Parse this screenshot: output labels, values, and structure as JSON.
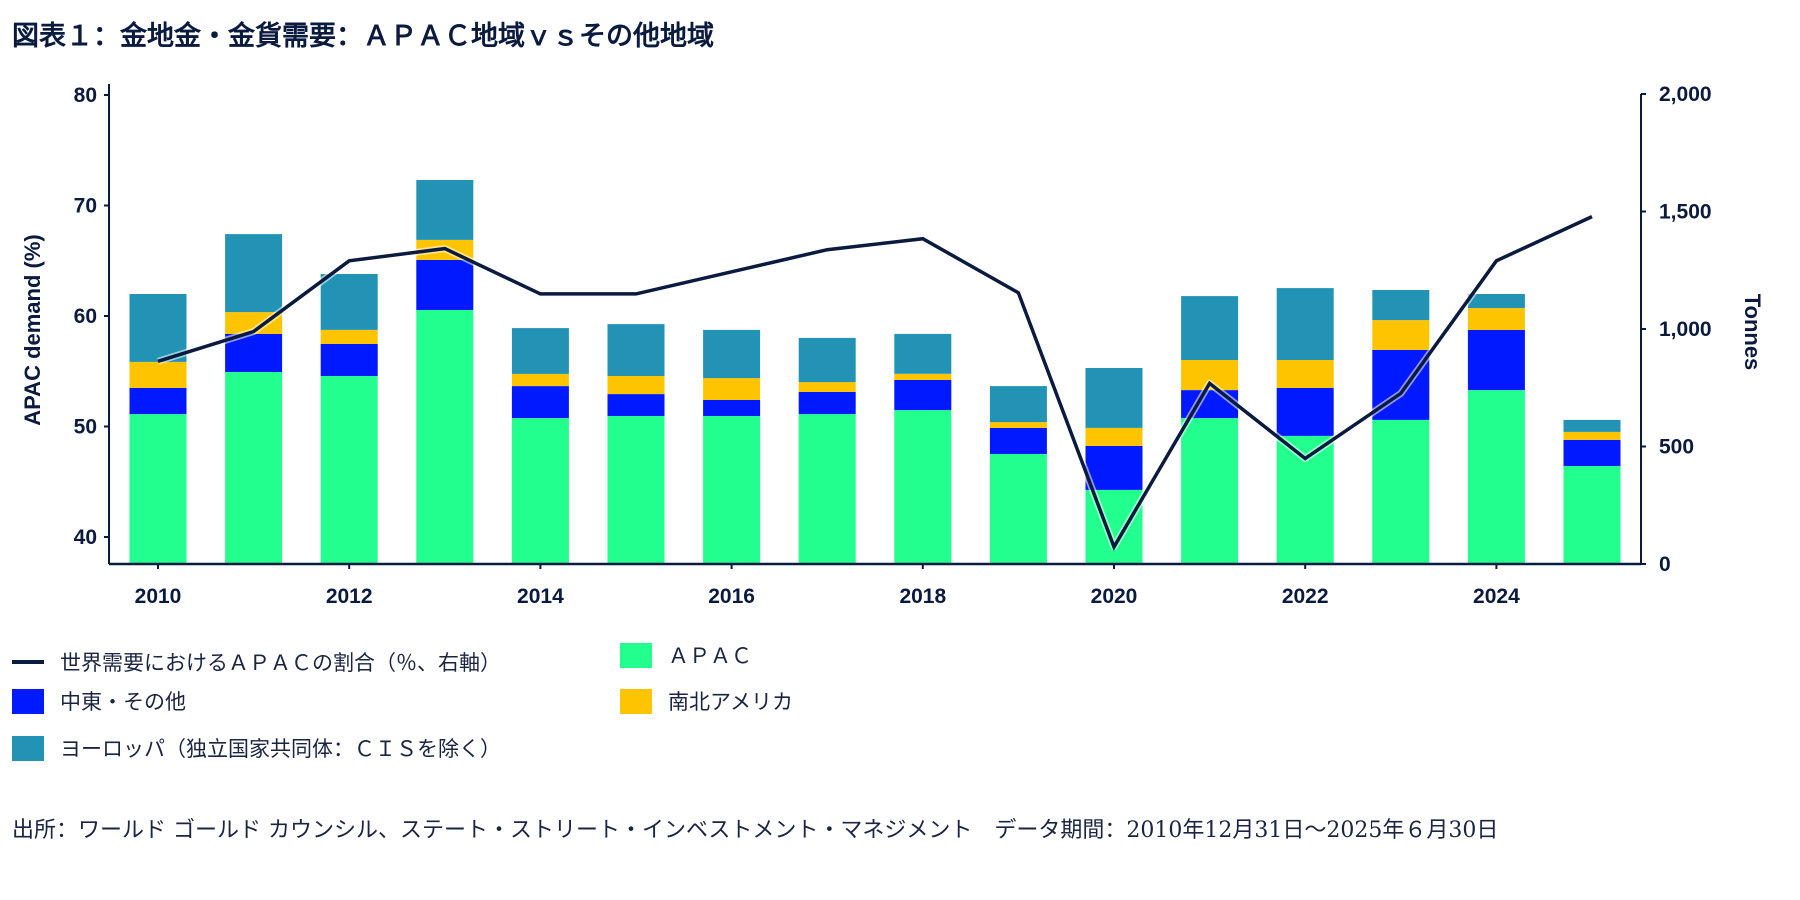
{
  "title": "図表１：金地金・金貨需要：ＡＰＡＣ地域ｖｓその他地域",
  "colors": {
    "apac": "#22ff8f",
    "middle_east_other": "#0019ff",
    "americas": "#ffc400",
    "europe": "#2293b4",
    "line": "#0b1a3f",
    "axis": "#0b1a3f"
  },
  "legend": [
    {
      "key": "line",
      "label": "世界需要におけるＡＰＡＣの割合（％、右軸）"
    },
    {
      "key": "apac",
      "label": "ＡＰＡＣ"
    },
    {
      "key": "middle_east_other",
      "label": "中東・その他"
    },
    {
      "key": "americas",
      "label": "南北アメリカ"
    },
    {
      "key": "europe",
      "label": "ヨーロッパ（独立国家共同体：ＣＩＳを除く）"
    }
  ],
  "footer": {
    "source": "出所：ワールド ゴールド カウンシル、ステート・ストリート・インベストメント・マネジメント　データ期間：2010年12月31日～2025年６月30日"
  },
  "chart_data": {
    "type": "bar",
    "stacked": true,
    "title": "図表１：金地金・金貨需要：ＡＰＡＣ地域ｖｓその他地域",
    "categories": [
      "2010",
      "2011",
      "2012",
      "2013",
      "2014",
      "2015",
      "2016",
      "2017",
      "2018",
      "2019",
      "2020",
      "2021",
      "2022",
      "2023",
      "2024",
      "2025"
    ],
    "x_tick_labels": [
      "2010",
      "2012",
      "2014",
      "2016",
      "2018",
      "2020",
      "2022",
      "2024"
    ],
    "ylabel_left": "APAC demand (%)",
    "ylabel_right": "Tonnes",
    "ylim_left": [
      37.6,
      80
    ],
    "yticks_left": [
      40,
      50,
      60,
      70,
      80
    ],
    "ylim_right": [
      0,
      2000
    ],
    "yticks_right": [
      0,
      500,
      1000,
      1500,
      2000
    ],
    "yticks_right_labels": [
      "0",
      "500",
      "1,000",
      "1,500",
      "2,000"
    ],
    "grid": false,
    "legend_position": "bottom",
    "series": [
      {
        "name": "ＡＰＡＣ",
        "key": "apac",
        "axis": "right",
        "type": "bar",
        "values": [
          638,
          817,
          800,
          1081,
          621,
          630,
          630,
          638,
          655,
          468,
          315,
          621,
          545,
          613,
          740,
          417
        ]
      },
      {
        "name": "中東・その他",
        "key": "middle_east_other",
        "axis": "right",
        "type": "bar",
        "values": [
          111,
          162,
          136,
          213,
          136,
          93,
          68,
          94,
          128,
          111,
          187,
          119,
          204,
          298,
          256,
          111
        ]
      },
      {
        "name": "南北アメリカ",
        "key": "americas",
        "axis": "right",
        "type": "bar",
        "values": [
          111,
          93,
          60,
          85,
          52,
          77,
          93,
          42,
          26,
          25,
          77,
          128,
          119,
          127,
          93,
          34
        ]
      },
      {
        "name": "ヨーロッパ（独立国家共同体：ＣＩＳを除く）",
        "key": "europe",
        "axis": "right",
        "type": "bar",
        "values": [
          289,
          332,
          238,
          255,
          195,
          221,
          205,
          188,
          170,
          153,
          255,
          272,
          306,
          128,
          60,
          51
        ]
      },
      {
        "name": "世界需要におけるＡＰＡＣの割合（％、右軸）",
        "key": "line",
        "axis": "left",
        "type": "line",
        "values": [
          55.9,
          58.6,
          65.0,
          66.1,
          62.0,
          62.0,
          64.0,
          66.0,
          67.0,
          62.1,
          39.1,
          53.9,
          47.1,
          53.0,
          65.0,
          69.0
        ]
      }
    ]
  }
}
